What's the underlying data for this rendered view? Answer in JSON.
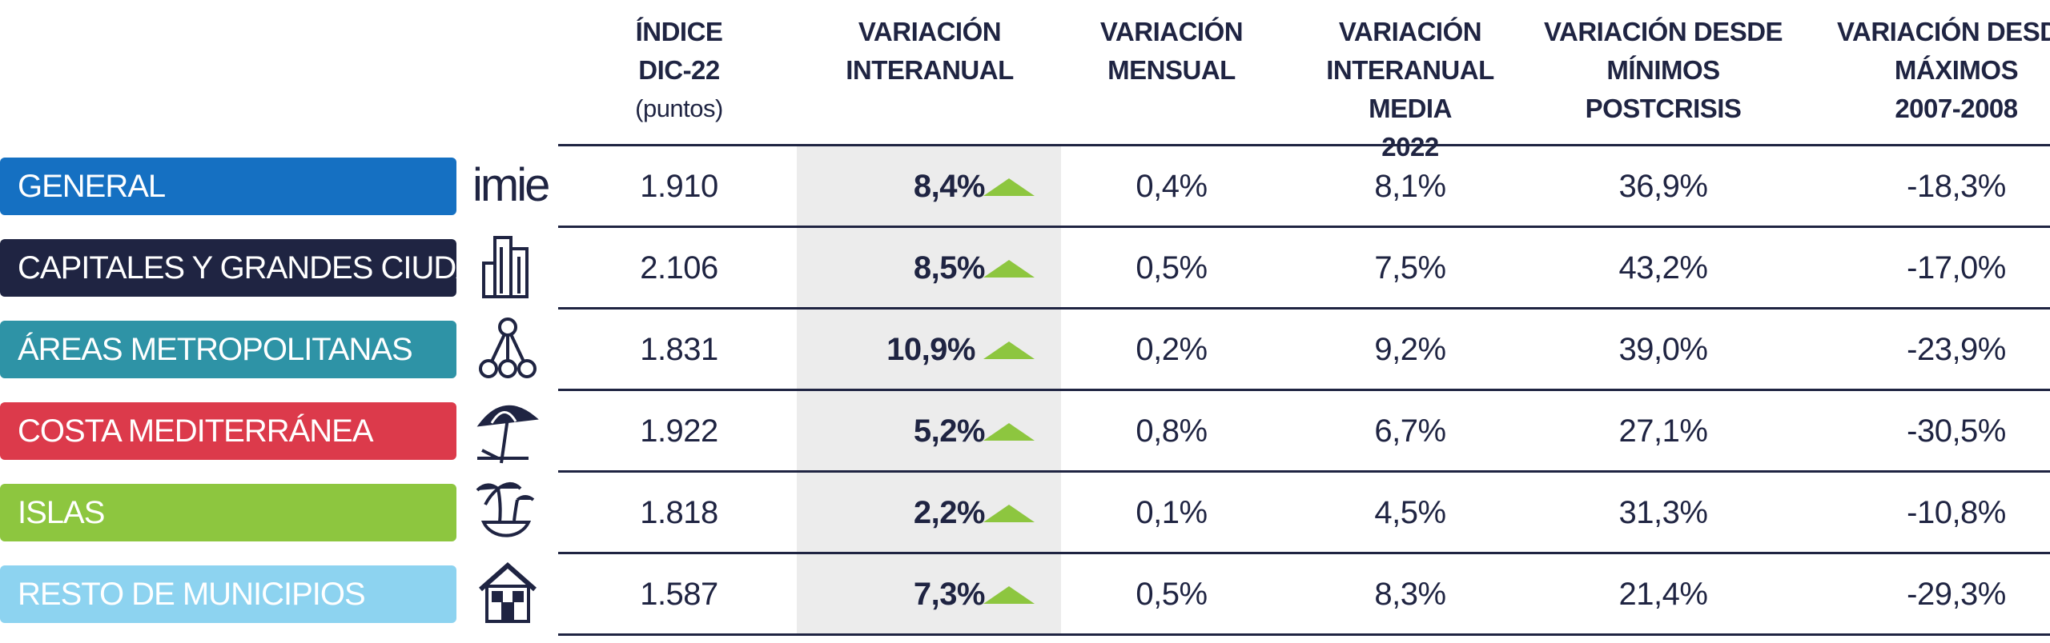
{
  "header": {
    "col_index": [
      "ÍNDICE",
      "DIC-22"
    ],
    "col_index_unit": "(puntos)",
    "col_yoy": [
      "VARIACIÓN",
      "INTERANUAL"
    ],
    "col_month": [
      "VARIACIÓN",
      "MENSUAL"
    ],
    "col_avg": [
      "VARIACIÓN",
      "INTERANUAL MEDIA",
      "2022"
    ],
    "col_min": [
      "VARIACIÓN DESDE",
      "MÍNIMOS",
      "POSTCRISIS"
    ],
    "col_max": [
      "VARIACIÓN DESDE",
      "MÁXIMOS",
      "2007-2008"
    ]
  },
  "rows": [
    {
      "label": "GENERAL",
      "color": "#1570c2",
      "icon": "imie-logo",
      "icon_text": "imie",
      "index": "1.910",
      "yoy": "8,4%",
      "trend": "up",
      "monthly": "0,4%",
      "avg": "8,1%",
      "from_min": "36,9%",
      "from_max": "-18,3%"
    },
    {
      "label": "CAPITALES Y GRANDES CIUDADES",
      "color": "#1f2442",
      "icon": "buildings-icon",
      "index": "2.106",
      "yoy": "8,5%",
      "trend": "up",
      "monthly": "0,5%",
      "avg": "7,5%",
      "from_min": "43,2%",
      "from_max": "-17,0%"
    },
    {
      "label": "ÁREAS METROPOLITANAS",
      "color": "#2e93a6",
      "icon": "network-icon",
      "index": "1.831",
      "yoy": "10,9%",
      "trend": "up",
      "monthly": "0,2%",
      "avg": "9,2%",
      "from_min": "39,0%",
      "from_max": "-23,9%"
    },
    {
      "label": "COSTA MEDITERRÁNEA",
      "color": "#dc3a4b",
      "icon": "beach-umbrella-icon",
      "index": "1.922",
      "yoy": "5,2%",
      "trend": "up",
      "monthly": "0,8%",
      "avg": "6,7%",
      "from_min": "27,1%",
      "from_max": "-30,5%"
    },
    {
      "label": "ISLAS",
      "color": "#8dc63f",
      "icon": "island-palm-icon",
      "index": "1.818",
      "yoy": "2,2%",
      "trend": "up",
      "monthly": "0,1%",
      "avg": "4,5%",
      "from_min": "31,3%",
      "from_max": "-10,8%"
    },
    {
      "label": "RESTO DE MUNICIPIOS",
      "color": "#8dd3f0",
      "icon": "house-icon",
      "index": "1.587",
      "yoy": "7,3%",
      "trend": "up",
      "monthly": "0,5%",
      "avg": "8,3%",
      "from_min": "21,4%",
      "from_max": "-29,3%"
    }
  ],
  "colors": {
    "text": "#1f2442",
    "arrow": "#8dc63f",
    "shade": "#ececec"
  }
}
